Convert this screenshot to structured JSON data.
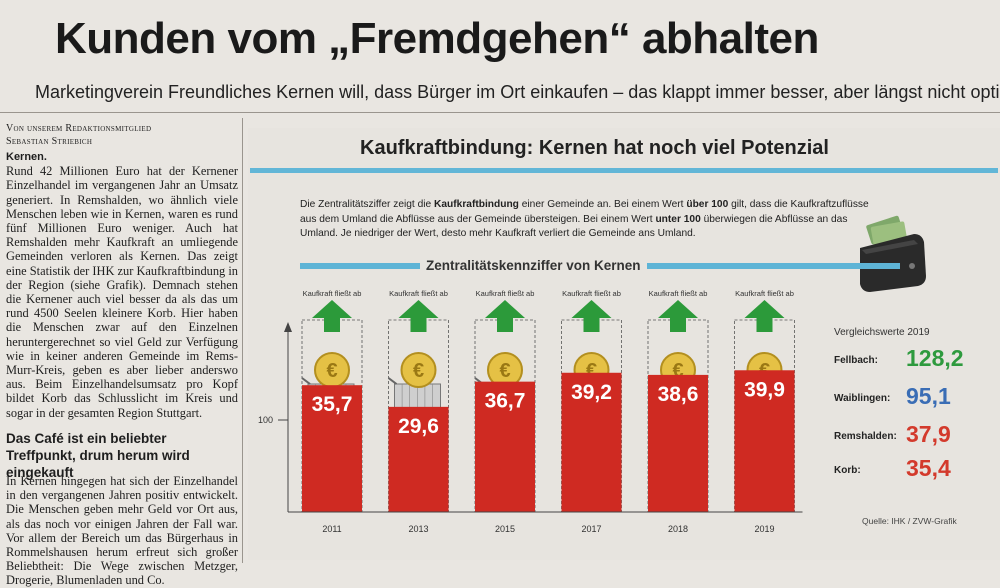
{
  "article": {
    "headline": "Kunden vom „Fremdgehen“ abhalten",
    "subline": "Marketingverein Freundliches Kernen will, dass Bürger im Ort einkaufen – das klappt immer besser, aber längst nicht optimal",
    "byline_1": "Von unserem Redaktionsmitglied",
    "byline_2": "Sebastian Striebich",
    "dateline": "Kernen.",
    "body_1": "Rund 42 Millionen Euro hat der Kernener Einzelhandel im vergangenen Jahr an Umsatz generiert. In Remshalden, wo ähnlich viele Menschen leben wie in Kernen, waren es rund fünf Millionen Euro weniger. Auch hat Remshalden mehr Kaufkraft an umliegende Gemeinden verloren als Kernen. Das zeigt eine Statistik der IHK zur Kaufkraftbindung in der Region (siehe Grafik). Demnach stehen die Kernener auch viel besser da als das um rund 4500 Seelen kleinere Korb. Hier haben die Menschen zwar auf den Einzelnen heruntergerechnet so viel Geld zur Verfügung wie in keiner anderen Gemeinde im Rems-Murr-Kreis, geben es aber lieber anderswo aus. Beim Einzelhandelsumsatz pro Kopf bildet Korb das Schlusslicht im Kreis und sogar in der gesamten Region Stuttgart.",
    "subheading": "Das Café ist ein beliebter Treffpunkt, drum herum wird eingekauft",
    "body_2": "In Kernen hingegen hat sich der Einzelhandel in den vergangenen Jahren positiv entwickelt. Die Menschen geben mehr Geld vor Ort aus, als das noch vor einigen Jahren der Fall war. Vor allem der Bereich um das Bürgerhaus in Rommelshausen herum erfreut sich großer Beliebtheit: Die Wege zwischen Metzger, Drogerie, Blumenladen und Co."
  },
  "graphic": {
    "title": "Kaufkraftbindung: Kernen hat noch viel Potenzial",
    "info_1": "Die Zentralitätsziffer zeigt die ",
    "info_bold_1": "Kaufkraftbindung",
    "info_2": " einer Gemeinde an. Bei einem Wert ",
    "info_bold_2": "über 100",
    "info_3": " gilt, dass die Kaufkraftzuflüsse aus dem Umland die Abflüsse aus der Gemeinde übersteigen. Bei einem Wert ",
    "info_bold_3": "unter 100",
    "info_4": " überwiegen die Abflüsse an das Umland. Je niedriger der Wert, desto mehr Kaufkraft verliert die Gemeinde ans Umland.",
    "chart_title": "Zentralitätskennziffer von Kernen",
    "source": "Quelle: IHK / ZVW-Grafik",
    "comparison_title": "Vergleichswerte 2019",
    "comparison": [
      {
        "name": "Fellbach:",
        "value": "128,2",
        "color": "#2e9a3e"
      },
      {
        "name": "Waiblingen:",
        "value": "95,1",
        "color": "#3a6db5"
      },
      {
        "name": "Remshalden:",
        "value": "37,9",
        "color": "#d33a2c"
      },
      {
        "name": "Korb:",
        "value": "35,4",
        "color": "#d33a2c"
      }
    ]
  },
  "chart_data": {
    "type": "bar",
    "title": "Zentralitätskennziffer von Kernen",
    "categories": [
      "2011",
      "2013",
      "2015",
      "2017",
      "2018",
      "2019"
    ],
    "values": [
      35.7,
      29.6,
      36.7,
      39.2,
      38.6,
      39.9
    ],
    "value_labels": [
      "35,7",
      "29,6",
      "36,7",
      "39,2",
      "38,6",
      "39,9"
    ],
    "reference_line": "100",
    "annotation": "Kaufkraft fließt ab",
    "ylim": [
      0,
      100
    ],
    "bar_color": "#cf2a22",
    "arrow_color": "#2c9a3a"
  }
}
